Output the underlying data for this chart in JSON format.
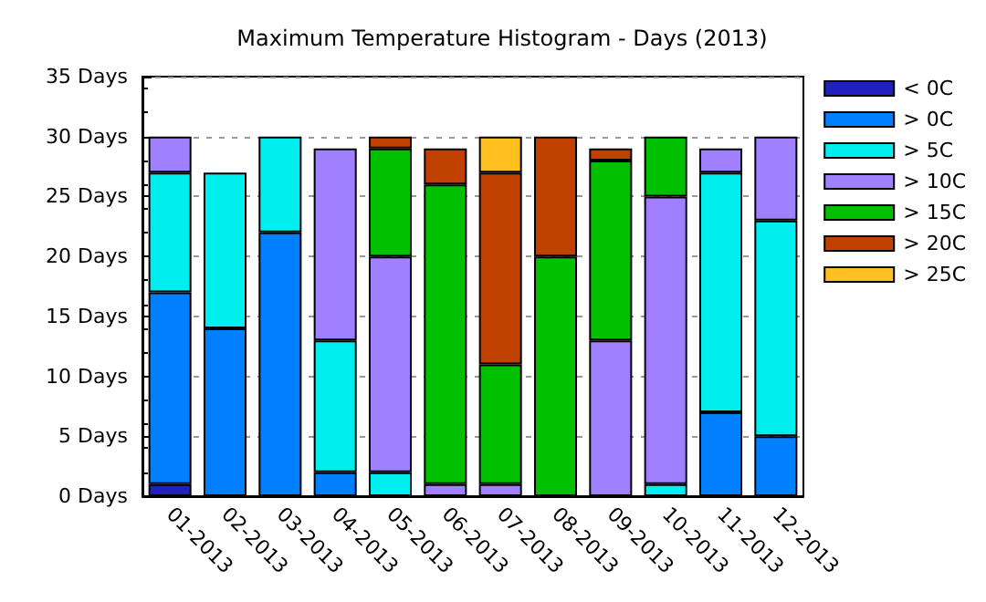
{
  "chart_data": {
    "type": "bar",
    "title": "Maximum Temperature Histogram - Days (2013)",
    "stacked": true,
    "categories": [
      "01-2013",
      "02-2013",
      "03-2013",
      "04-2013",
      "05-2013",
      "06-2013",
      "07-2013",
      "08-2013",
      "09-2013",
      "10-2013",
      "11-2013",
      "12-2013"
    ],
    "series": [
      {
        "name": "< 0C",
        "color": "#2020c0",
        "values": [
          1,
          null,
          null,
          null,
          null,
          null,
          null,
          null,
          null,
          null,
          null,
          null
        ]
      },
      {
        "name": "> 0C",
        "color": "#0080ff",
        "values": [
          16,
          14,
          22,
          2,
          null,
          null,
          null,
          null,
          null,
          null,
          7,
          5
        ]
      },
      {
        "name": "> 5C",
        "color": "#00eeee",
        "values": [
          10,
          13,
          8,
          11,
          2,
          null,
          null,
          null,
          null,
          1,
          20,
          18
        ]
      },
      {
        "name": "> 10C",
        "color": "#a080ff",
        "values": [
          3,
          null,
          null,
          16,
          18,
          1,
          1,
          null,
          13,
          24,
          2,
          7
        ]
      },
      {
        "name": "> 15C",
        "color": "#00c000",
        "values": [
          null,
          null,
          null,
          null,
          9,
          25,
          10,
          20,
          15,
          5,
          null,
          null
        ]
      },
      {
        "name": "> 20C",
        "color": "#c04000",
        "values": [
          null,
          null,
          null,
          null,
          1,
          3,
          16,
          10,
          1,
          null,
          null,
          null
        ]
      },
      {
        "name": "> 25C",
        "color": "#ffc020",
        "values": [
          null,
          null,
          null,
          null,
          null,
          null,
          3,
          null,
          null,
          null,
          null,
          null
        ]
      }
    ],
    "ylim": [
      0,
      35
    ],
    "yticks": [
      {
        "value": 0,
        "label": "0 Days"
      },
      {
        "value": 5,
        "label": "5 Days"
      },
      {
        "value": 10,
        "label": "10 Days"
      },
      {
        "value": 15,
        "label": "15 Days"
      },
      {
        "value": 20,
        "label": "20 Days"
      },
      {
        "value": 25,
        "label": "25 Days"
      },
      {
        "value": 30,
        "label": "30 Days"
      },
      {
        "value": 35,
        "label": "35 Days"
      }
    ],
    "grid": "y",
    "legend": "right"
  }
}
